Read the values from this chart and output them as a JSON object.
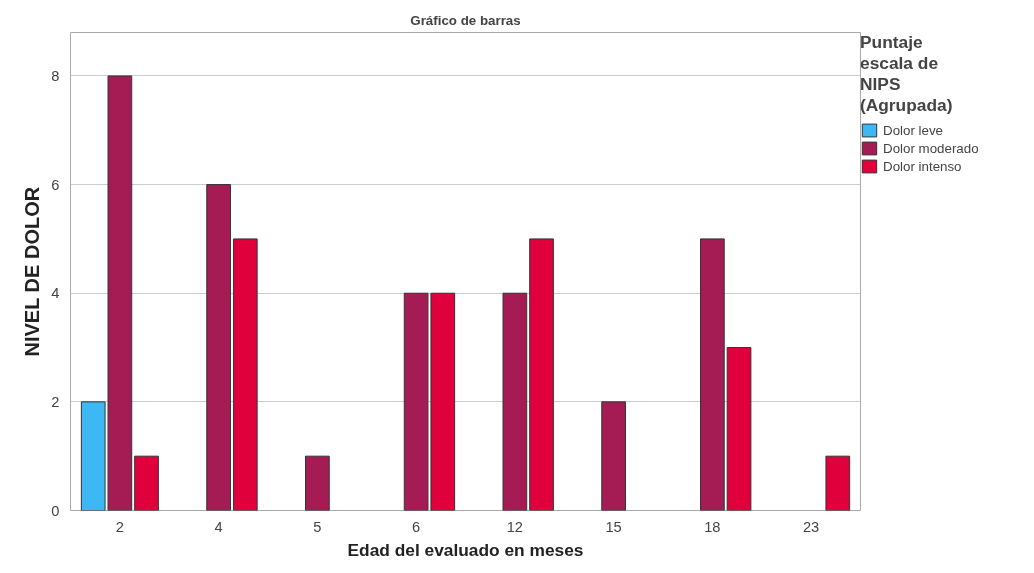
{
  "chart_data": {
    "type": "bar",
    "title": "Gráfico de barras",
    "xlabel": "Edad del evaluado en meses",
    "ylabel": "NIVEL DE DOLOR",
    "legend_title": "Puntaje escala de NIPS (Agrupada)",
    "categories": [
      "2",
      "4",
      "5",
      "6",
      "12",
      "15",
      "18",
      "23"
    ],
    "series": [
      {
        "name": "Dolor leve",
        "color": "#3db8f5",
        "values": [
          2,
          null,
          null,
          null,
          null,
          null,
          null,
          null
        ]
      },
      {
        "name": "Dolor moderado",
        "color": "#a51c55",
        "values": [
          8,
          6,
          1,
          4,
          4,
          2,
          5,
          null
        ]
      },
      {
        "name": "Dolor intenso",
        "color": "#e0003c",
        "values": [
          1,
          5,
          null,
          4,
          5,
          null,
          3,
          1
        ]
      }
    ],
    "ylim": [
      0,
      8.8
    ],
    "yticks": [
      0,
      2,
      4,
      6,
      8
    ],
    "grid": "y",
    "legend": "right"
  }
}
